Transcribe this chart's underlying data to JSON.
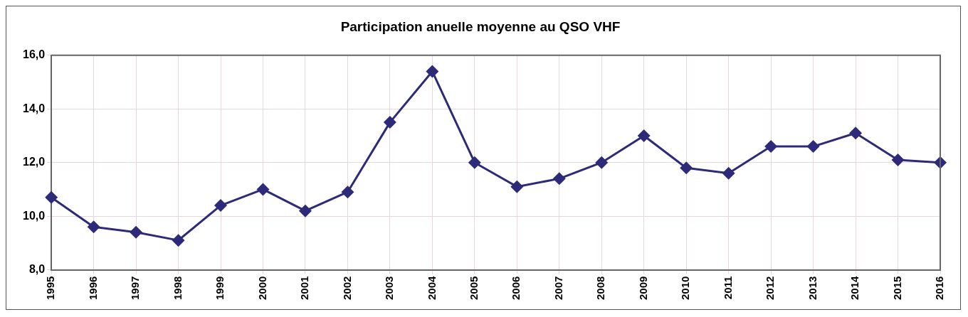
{
  "chart_data": {
    "type": "line",
    "title": "Participation anuelle moyenne au QSO VHF",
    "categories": [
      "1995",
      "1996",
      "1997",
      "1998",
      "1999",
      "2000",
      "2001",
      "2002",
      "2003",
      "2004",
      "2005",
      "2006",
      "2007",
      "2008",
      "2009",
      "2010",
      "2011",
      "2012",
      "2013",
      "2014",
      "2015",
      "2016"
    ],
    "series": [
      {
        "color": "#2e2a7a",
        "values": [
          10.7,
          9.6,
          9.4,
          9.1,
          10.4,
          11.0,
          10.2,
          10.9,
          13.5,
          15.4,
          12.0,
          11.1,
          11.4,
          12.0,
          13.0,
          11.8,
          11.6,
          12.6,
          12.6,
          13.1,
          12.1,
          12.0
        ]
      }
    ],
    "ylim": [
      8,
      16
    ],
    "yticks": [
      {
        "value": 8,
        "label": "8,0"
      },
      {
        "value": 10,
        "label": "10,0"
      },
      {
        "value": 12,
        "label": "12,0"
      },
      {
        "value": 14,
        "label": "14,0"
      },
      {
        "value": 16,
        "label": "16,0"
      }
    ],
    "grid": true,
    "legend": false,
    "marker": "diamond",
    "line_style": "solid"
  }
}
